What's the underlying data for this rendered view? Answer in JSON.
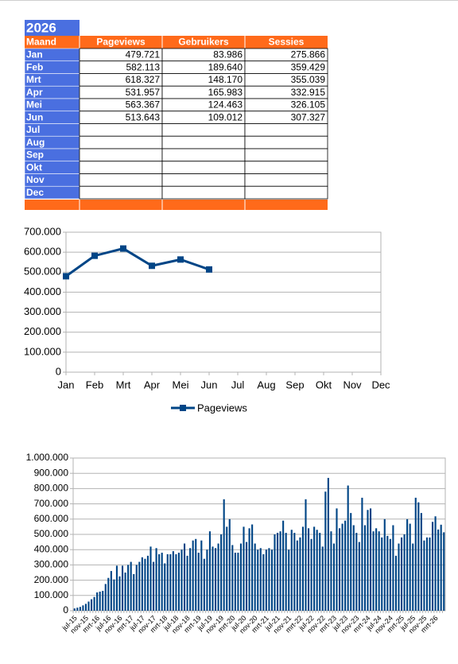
{
  "table": {
    "title": "2026",
    "header": [
      "Maand",
      "Pageviews",
      "Gebruikers",
      "Sessies"
    ],
    "rows": [
      [
        "Jan",
        "479.721",
        "83.986",
        "275.866"
      ],
      [
        "Feb",
        "582.113",
        "189.640",
        "359.429"
      ],
      [
        "Mrt",
        "618.327",
        "148.170",
        "355.039"
      ],
      [
        "Apr",
        "531.957",
        "165.983",
        "332.915"
      ],
      [
        "Mei",
        "563.367",
        "124.463",
        "326.105"
      ],
      [
        "Jun",
        "513.643",
        "109.012",
        "307.327"
      ],
      [
        "Jul",
        null,
        null,
        null
      ],
      [
        "Aug",
        null,
        null,
        null
      ],
      [
        "Sep",
        null,
        null,
        null
      ],
      [
        "Okt",
        null,
        null,
        null
      ],
      [
        "Nov",
        null,
        null,
        null
      ],
      [
        "Dec",
        null,
        null,
        null
      ]
    ]
  },
  "chart_data": [
    {
      "type": "line",
      "categories": [
        "Jan",
        "Feb",
        "Mrt",
        "Apr",
        "Mei",
        "Jun",
        "Jul",
        "Aug",
        "Sep",
        "Okt",
        "Nov",
        "Dec"
      ],
      "series": [
        {
          "name": "Pageviews",
          "color": "#004586",
          "values": [
            479721,
            582113,
            618327,
            531957,
            563367,
            513643,
            null,
            null,
            null,
            null,
            null,
            null
          ]
        }
      ],
      "ylim": [
        0,
        700000
      ],
      "yticks": [
        0,
        {
          "value": 100000,
          "label": "100.000"
        },
        {
          "value": 200000,
          "label": "200.000"
        },
        {
          "value": 300000,
          "label": "300.000"
        },
        {
          "value": 400000,
          "label": "400.000"
        },
        {
          "value": 500000,
          "label": "500.000"
        },
        {
          "value": 600000,
          "label": "600.000"
        },
        {
          "value": 700000,
          "label": "700.000"
        }
      ],
      "grid": true,
      "legend": "bottom"
    },
    {
      "type": "bar",
      "categories": [
        "jul-15",
        null,
        null,
        null,
        "nov-15",
        null,
        null,
        null,
        "mrt-16",
        null,
        null,
        null,
        "jul-16",
        null,
        null,
        null,
        "nov-16",
        null,
        null,
        null,
        "mrt-17",
        null,
        null,
        null,
        "jul-17",
        null,
        null,
        null,
        "nov-17",
        null,
        null,
        null,
        "mrt-18",
        null,
        null,
        null,
        "jul-18",
        null,
        null,
        null,
        "nov-18",
        null,
        null,
        null,
        "mrt-19",
        null,
        null,
        null,
        "jul-19",
        null,
        null,
        null,
        "nov-19",
        null,
        null,
        null,
        "mrt-20",
        null,
        null,
        null,
        "jul-20",
        null,
        null,
        null,
        "nov-20",
        null,
        null,
        null,
        "mrt-21",
        null,
        null,
        null,
        "jul-21",
        null,
        null,
        null,
        "nov-21",
        null,
        null,
        null,
        "mrt-22",
        null,
        null,
        null,
        "jul-22",
        null,
        null,
        null,
        "nov-22",
        null,
        null,
        null,
        "mrt-23",
        null,
        null,
        null,
        "jul-23",
        null,
        null,
        null,
        "nov-23",
        null,
        null,
        null,
        "mrt-24",
        null,
        null,
        null,
        "jul-24",
        null,
        null,
        null,
        "nov-24",
        null,
        null,
        null,
        "mrt-25",
        null,
        null,
        null,
        "jul-25",
        null,
        null,
        null,
        "nov-25",
        null,
        null,
        null,
        "mrt-26",
        null,
        null,
        null
      ],
      "values": [
        15000,
        20000,
        25000,
        35000,
        45000,
        60000,
        75000,
        90000,
        120000,
        125000,
        130000,
        175000,
        215000,
        260000,
        205000,
        295000,
        225000,
        295000,
        250000,
        300000,
        320000,
        240000,
        300000,
        320000,
        350000,
        340000,
        360000,
        420000,
        320000,
        410000,
        370000,
        380000,
        310000,
        370000,
        370000,
        390000,
        370000,
        380000,
        400000,
        440000,
        360000,
        410000,
        460000,
        470000,
        380000,
        460000,
        340000,
        400000,
        520000,
        420000,
        410000,
        440000,
        500000,
        730000,
        550000,
        600000,
        430000,
        380000,
        380000,
        440000,
        550000,
        450000,
        540000,
        565000,
        440000,
        400000,
        410000,
        370000,
        400000,
        410000,
        400000,
        500000,
        510000,
        520000,
        590000,
        510000,
        400000,
        530000,
        510000,
        460000,
        480000,
        550000,
        730000,
        540000,
        470000,
        550000,
        530000,
        510000,
        420000,
        780000,
        870000,
        520000,
        440000,
        670000,
        540000,
        570000,
        590000,
        820000,
        640000,
        560000,
        510000,
        450000,
        740000,
        560000,
        660000,
        670000,
        520000,
        540000,
        520000,
        480000,
        600000,
        490000,
        470000,
        560000,
        360000,
        440000,
        480000,
        500000,
        600000,
        570000,
        440000,
        740000,
        710000,
        640000,
        460000,
        480000,
        479721,
        582113,
        618327,
        531957,
        563367,
        513643
      ],
      "color": "#004586",
      "ylim": [
        0,
        1000000
      ],
      "yticks": [
        0,
        {
          "value": 100000,
          "label": "100.000"
        },
        {
          "value": 200000,
          "label": "200.000"
        },
        {
          "value": 300000,
          "label": "300.000"
        },
        {
          "value": 400000,
          "label": "400.000"
        },
        {
          "value": 500000,
          "label": "500.000"
        },
        {
          "value": 600000,
          "label": "600.000"
        },
        {
          "value": 700000,
          "label": "700.000"
        },
        {
          "value": 800000,
          "label": "800.000"
        },
        {
          "value": 900000,
          "label": "900.000"
        },
        {
          "value": 1000000,
          "label": "1.000.000"
        }
      ],
      "grid": true
    }
  ]
}
